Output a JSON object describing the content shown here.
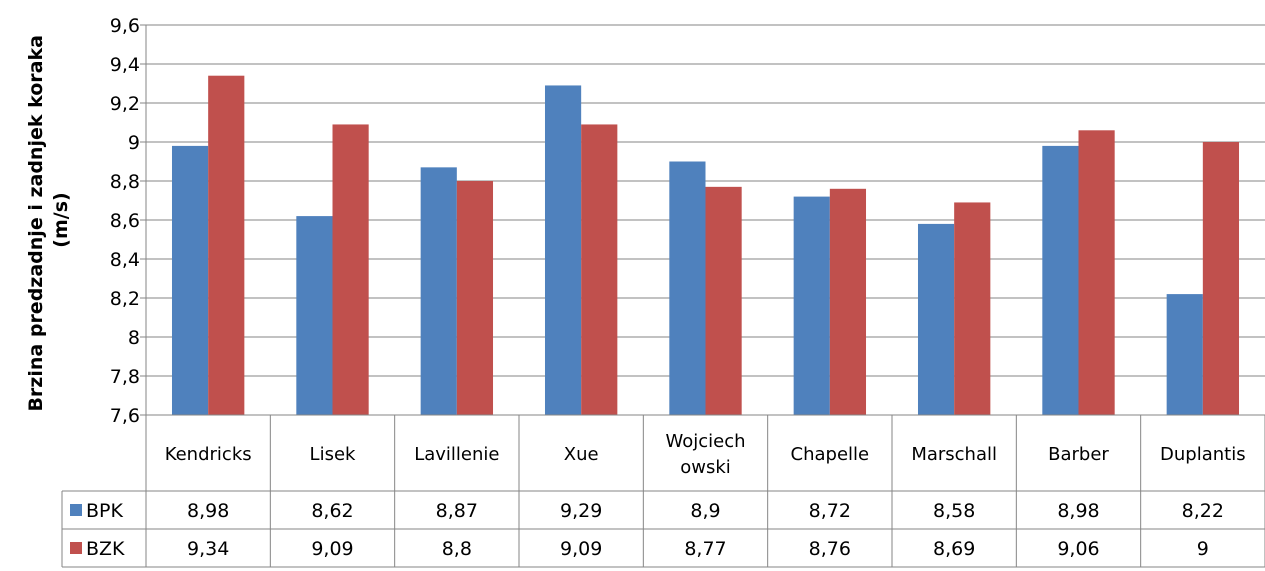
{
  "chart_data": {
    "type": "bar",
    "title": "",
    "xlabel": "",
    "ylabel_lines": [
      "Brzina predzadnje i zadnjek koraka",
      "(m/s)"
    ],
    "ylim": [
      7.6,
      9.6
    ],
    "ytick_step": 0.2,
    "ytick_labels": [
      "7,6",
      "7,8",
      "8",
      "8,2",
      "8,4",
      "8,6",
      "8,8",
      "9",
      "9,2",
      "9,4",
      "9,6"
    ],
    "grid": true,
    "legend": "data-table",
    "categories": [
      [
        "Kendricks"
      ],
      [
        "Lisek"
      ],
      [
        "Lavillenie"
      ],
      [
        "Xue"
      ],
      [
        "Wojciech",
        "owski"
      ],
      [
        "Chapelle"
      ],
      [
        "Marschall"
      ],
      [
        "Barber"
      ],
      [
        "Duplantis"
      ]
    ],
    "series": [
      {
        "name": "BPK",
        "color": "#4F81BD",
        "values": [
          8.98,
          8.62,
          8.87,
          9.29,
          8.9,
          8.72,
          8.58,
          8.98,
          8.22
        ],
        "labels": [
          "8,98",
          "8,62",
          "8,87",
          "9,29",
          "8,9",
          "8,72",
          "8,58",
          "8,98",
          "8,22"
        ]
      },
      {
        "name": "BZK",
        "color": "#C0504D",
        "values": [
          9.34,
          9.09,
          8.8,
          9.09,
          8.77,
          8.76,
          8.69,
          9.06,
          9
        ],
        "labels": [
          "9,34",
          "9,09",
          "8,8",
          "9,09",
          "8,77",
          "8,76",
          "8,69",
          "9,06",
          "9"
        ]
      }
    ]
  }
}
